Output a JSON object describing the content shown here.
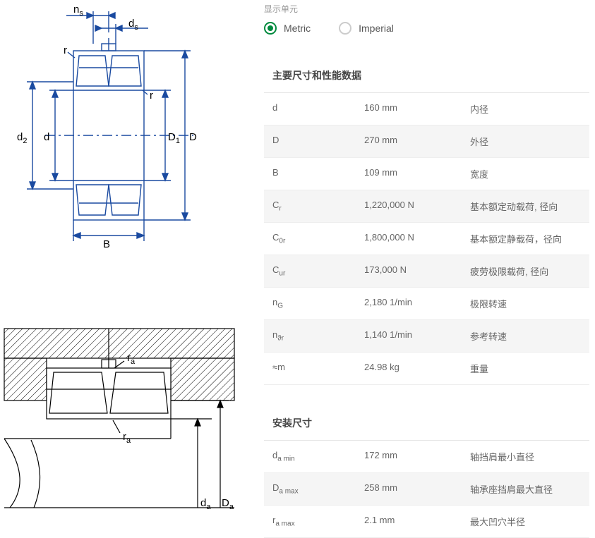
{
  "accent_color": "#00893d",
  "diagram1": {
    "stroke": "#1a4aa0",
    "labels": {
      "ns": "n",
      "ns_sub": "s",
      "ds": "d",
      "ds_sub": "s",
      "r": "r",
      "d2": "d",
      "d2_sub": "2",
      "d": "d",
      "D1": "D",
      "D1_sub": "1",
      "D": "D",
      "B": "B"
    }
  },
  "diagram2": {
    "labels": {
      "ra": "r",
      "ra_sub": "a",
      "da": "d",
      "da_sub": "a",
      "Da": "D",
      "Da_sub": "a"
    }
  },
  "units": {
    "label": "显示单元",
    "options": [
      {
        "key": "metric",
        "label": "Metric",
        "selected": true
      },
      {
        "key": "imperial",
        "label": "Imperial",
        "selected": false
      }
    ]
  },
  "sections": [
    {
      "title": "主要尺寸和性能数据",
      "rows": [
        {
          "sym": "d",
          "sub": "",
          "val": "160 mm",
          "desc": "内径",
          "alt": false
        },
        {
          "sym": "D",
          "sub": "",
          "val": "270 mm",
          "desc": "外径",
          "alt": true
        },
        {
          "sym": "B",
          "sub": "",
          "val": "109 mm",
          "desc": "宽度",
          "alt": false
        },
        {
          "sym": "C",
          "sub": "r",
          "val": "1,220,000 N",
          "desc": "基本额定动载荷, 径向",
          "alt": true
        },
        {
          "sym": "C",
          "sub": "0r",
          "val": "1,800,000 N",
          "desc": "基本额定静载荷，径向",
          "alt": false
        },
        {
          "sym": "C",
          "sub": "ur",
          "val": "173,000 N",
          "desc": "疲劳极限载荷, 径向",
          "alt": true
        },
        {
          "sym": "n",
          "sub": "G",
          "val": "2,180 1/min",
          "desc": "极限转速",
          "alt": false
        },
        {
          "sym": "n",
          "sub": "ϑr",
          "val": "1,140 1/min",
          "desc": "参考转速",
          "alt": true
        },
        {
          "sym": "≈m",
          "sub": "",
          "val": "24.98 kg",
          "desc": "重量",
          "alt": false
        }
      ]
    },
    {
      "title": "安装尺寸",
      "rows": [
        {
          "sym": "d",
          "sub": "a min",
          "val": "172 mm",
          "desc": "轴挡肩最小直径",
          "alt": false
        },
        {
          "sym": "D",
          "sub": "a max",
          "val": "258 mm",
          "desc": "轴承座挡肩最大直径",
          "alt": true
        },
        {
          "sym": "r",
          "sub": "a max",
          "val": "2.1 mm",
          "desc": "最大凹穴半径",
          "alt": false
        }
      ]
    }
  ]
}
